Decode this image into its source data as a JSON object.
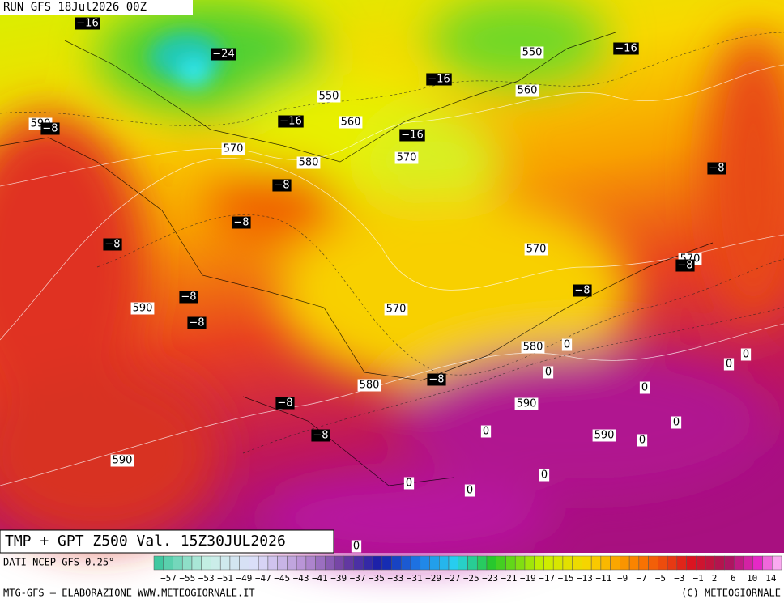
{
  "header": {
    "run": "RUN GFS 18Jul2026 00Z"
  },
  "map": {
    "temp_labels": [
      "−16",
      "−24",
      "−16",
      "−16",
      "−16",
      "−16",
      "−8",
      "−8",
      "−8",
      "−8",
      "−8",
      "−8",
      "−8",
      "−8",
      "−8",
      "−8",
      "−8",
      "−8"
    ],
    "zero_labels": [
      "0",
      "0",
      "0",
      "0",
      "0",
      "0",
      "0",
      "0",
      "0",
      "0",
      "0",
      "0"
    ],
    "height_labels": [
      "590",
      "550",
      "560",
      "550",
      "560",
      "570",
      "580",
      "570",
      "570",
      "570",
      "590",
      "570",
      "580",
      "580",
      "590",
      "590",
      "590"
    ]
  },
  "footer": {
    "product": "TMP + GPT Z500 Val. 15Z30JUL2026",
    "source": "DATI NCEP GFS 0.25°",
    "credit": "MTG-GFS — ELABORAZIONE WWW.METEOGIORNALE.IT",
    "copyright": "(C) METEOGIORNALE",
    "colorbar_labels": [
      "−57",
      "−55",
      "−53",
      "−51",
      "−49",
      "−47",
      "−45",
      "−43",
      "−41",
      "−39",
      "−37",
      "−35",
      "−33",
      "−31",
      "−29",
      "−27",
      "−25",
      "−23",
      "−21",
      "−19",
      "−17",
      "−15",
      "−13",
      "−11",
      "−9",
      "−7",
      "−5",
      "−3",
      "−1",
      "2",
      "6",
      "10",
      "14"
    ]
  }
}
